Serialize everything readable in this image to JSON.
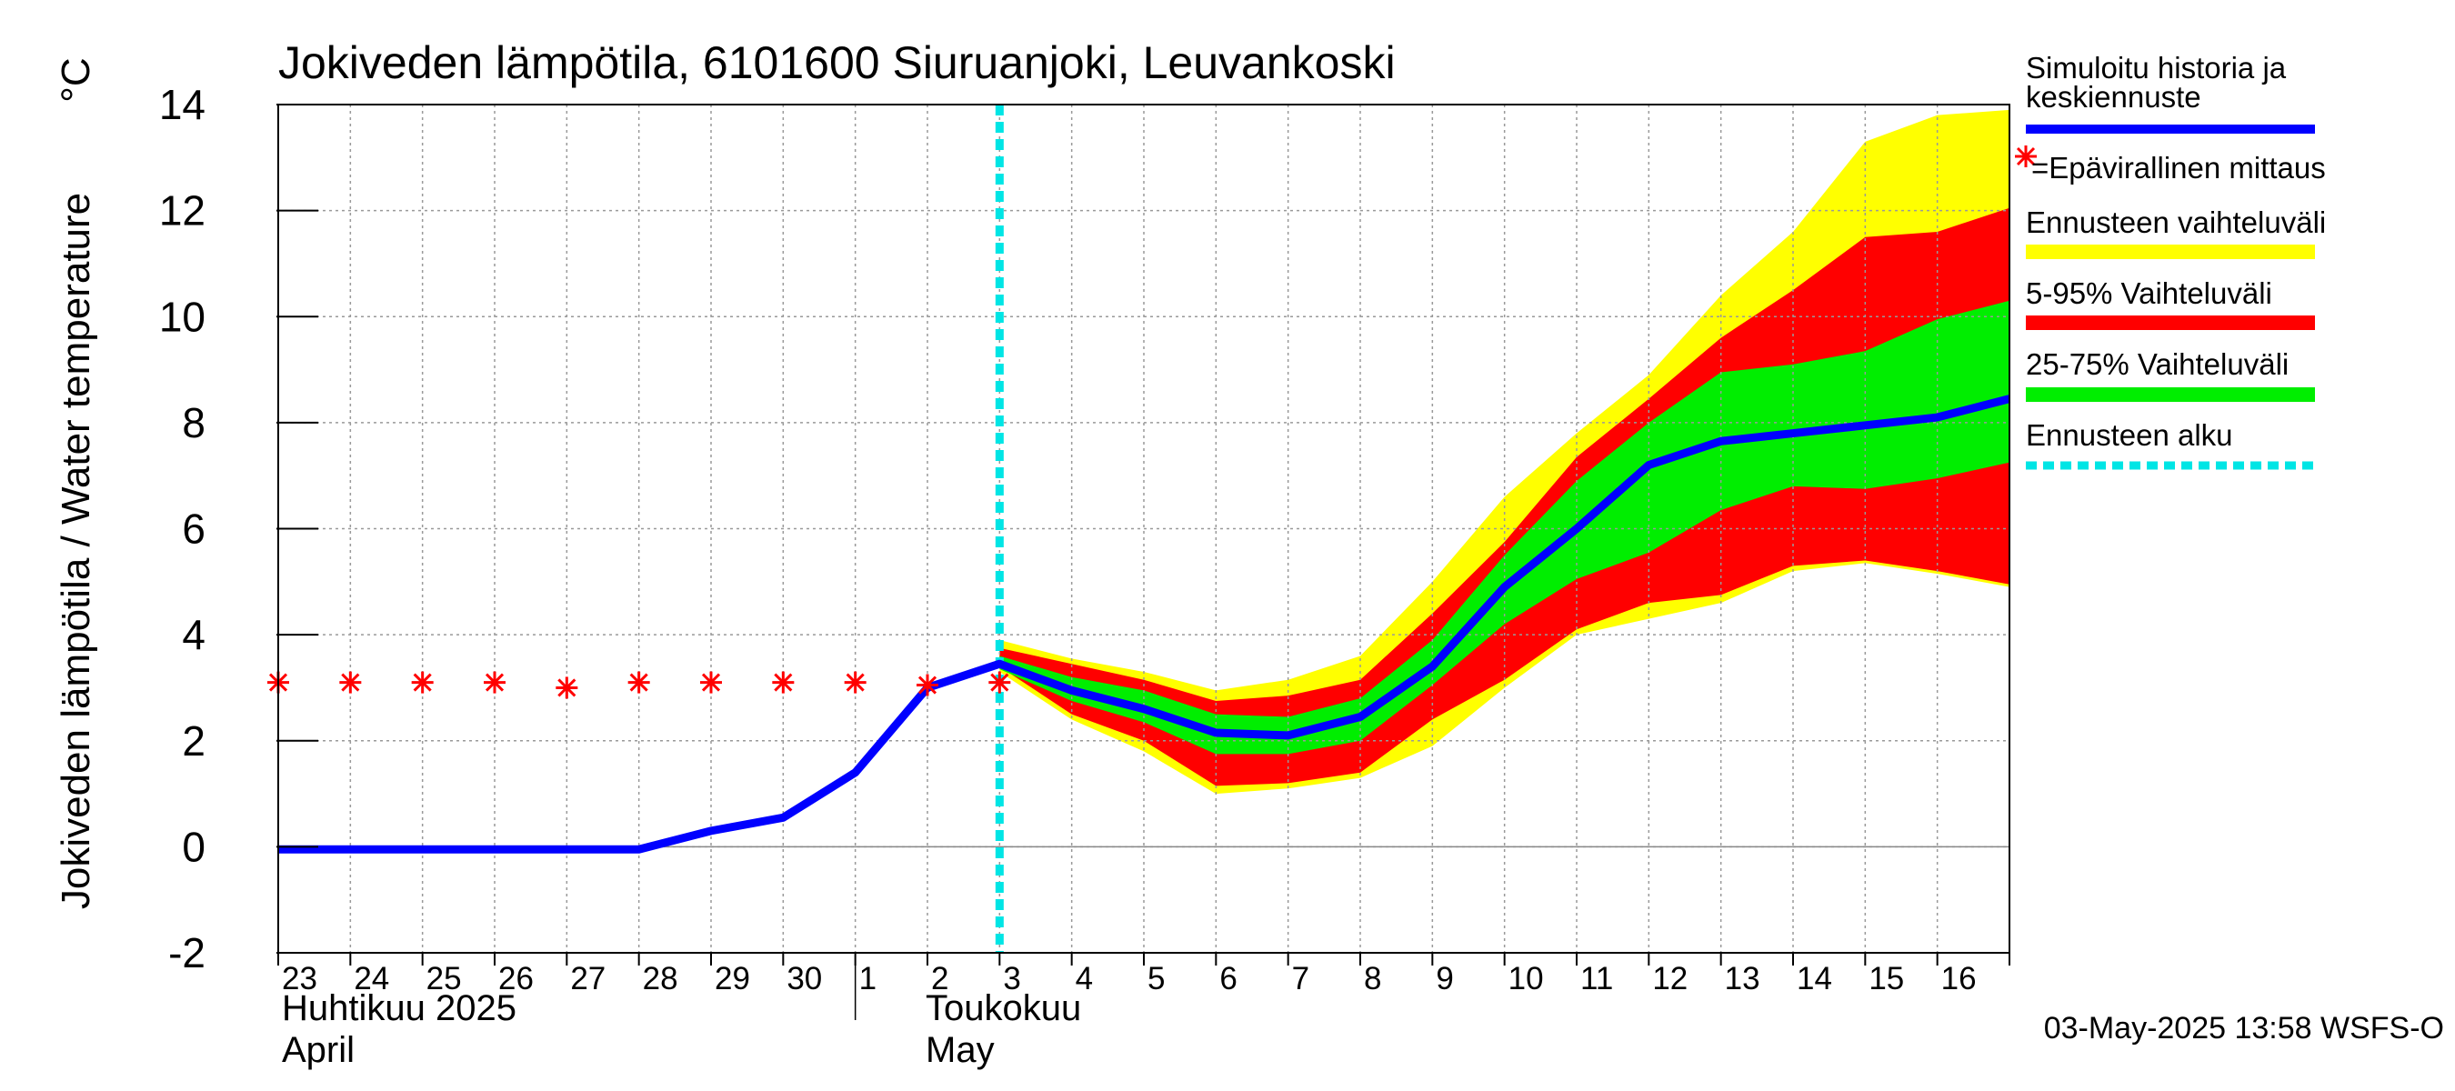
{
  "chart_data": {
    "type": "line",
    "title": "Jokiveden lämpötila, 6101600 Siuruanjoki, Leuvankoski",
    "ylabel": "Jokiveden lämpötila / Water temperature",
    "yunit": "°C",
    "ylim": [
      -2,
      14
    ],
    "yticks": [
      -2,
      0,
      2,
      4,
      6,
      8,
      10,
      12,
      14
    ],
    "xlim": [
      0,
      24
    ],
    "grid": true,
    "day_labels": [
      "23",
      "24",
      "25",
      "26",
      "27",
      "28",
      "29",
      "30",
      "1",
      "2",
      "3",
      "4",
      "5",
      "6",
      "7",
      "8",
      "9",
      "10",
      "11",
      "12",
      "13",
      "14",
      "15",
      "16"
    ],
    "month_labels": {
      "april_fi": "Huhtikuu  2025",
      "april_en": "April",
      "may_fi": "Toukokuu",
      "may_en": "May"
    },
    "forecast_start_x": 10,
    "series": [
      {
        "name": "Simuloitu historia ja keskiennuste",
        "color": "#0000ff",
        "x": [
          0,
          1,
          2,
          3,
          4,
          5,
          6,
          7,
          8,
          9,
          10,
          11,
          12,
          13,
          14,
          15,
          16,
          17,
          18,
          19,
          20,
          21,
          22,
          23,
          24
        ],
        "values": [
          -0.05,
          -0.05,
          -0.05,
          -0.05,
          -0.05,
          -0.05,
          0.3,
          0.55,
          1.4,
          3.0,
          3.45,
          2.95,
          2.6,
          2.15,
          2.1,
          2.45,
          3.4,
          4.9,
          6.0,
          7.2,
          7.65,
          7.8,
          7.95,
          8.1,
          8.45
        ]
      },
      {
        "name": "Epävirallinen mittaus",
        "color": "#ff0000",
        "x": [
          0,
          1,
          2,
          3,
          4,
          5,
          6,
          7,
          8,
          9,
          10
        ],
        "values": [
          3.1,
          3.1,
          3.1,
          3.1,
          3.0,
          3.1,
          3.1,
          3.1,
          3.1,
          3.05,
          3.1
        ]
      }
    ],
    "bands": [
      {
        "name": "Ennusteen vaihteluväli",
        "color": "#ffff00",
        "x": [
          10,
          11,
          12,
          13,
          14,
          15,
          16,
          17,
          18,
          19,
          20,
          21,
          22,
          23,
          24
        ],
        "lower": [
          3.3,
          2.4,
          1.8,
          1.0,
          1.1,
          1.3,
          1.9,
          3.0,
          4.0,
          4.3,
          4.6,
          5.2,
          5.35,
          5.15,
          4.9
        ],
        "upper": [
          3.9,
          3.55,
          3.3,
          2.95,
          3.15,
          3.6,
          5.0,
          6.6,
          7.8,
          8.9,
          10.4,
          11.6,
          13.3,
          13.8,
          13.9
        ]
      },
      {
        "name": "5-95% Vaihteluväli",
        "color": "#ff0000",
        "x": [
          10,
          11,
          12,
          13,
          14,
          15,
          16,
          17,
          18,
          19,
          20,
          21,
          22,
          23,
          24
        ],
        "lower": [
          3.4,
          2.5,
          2.0,
          1.15,
          1.2,
          1.4,
          2.4,
          3.15,
          4.1,
          4.6,
          4.75,
          5.3,
          5.4,
          5.2,
          4.95
        ],
        "upper": [
          3.75,
          3.45,
          3.15,
          2.75,
          2.85,
          3.15,
          4.4,
          5.75,
          7.35,
          8.45,
          9.6,
          10.5,
          11.5,
          11.6,
          12.05
        ]
      },
      {
        "name": "25-75% Vaihteluväli",
        "color": "#00ee00",
        "x": [
          10,
          11,
          12,
          13,
          14,
          15,
          16,
          17,
          18,
          19,
          20,
          21,
          22,
          23,
          24
        ],
        "lower": [
          3.35,
          2.75,
          2.35,
          1.75,
          1.75,
          2.0,
          3.05,
          4.2,
          5.05,
          5.55,
          6.35,
          6.8,
          6.75,
          6.95,
          7.25
        ],
        "upper": [
          3.6,
          3.2,
          2.95,
          2.5,
          2.45,
          2.8,
          3.9,
          5.5,
          6.9,
          8.0,
          8.95,
          9.1,
          9.35,
          9.95,
          10.3
        ]
      }
    ],
    "legend": {
      "placement": "right",
      "sim_line1": "Simuloitu historia ja",
      "sim_line2": "keskiennuste",
      "unofficial": "=Epävirallinen mittaus",
      "range": "Ennusteen vaihteluväli",
      "p5_95": "5-95% Vaihteluväli",
      "p25_75": "25-75% Vaihteluväli",
      "start": "Ennusteen alku"
    },
    "colors": {
      "forecast_start": "#00e5e5",
      "grid": "#999999",
      "axis": "#000000"
    },
    "timestamp": "03-May-2025 13:58 WSFS-O"
  }
}
